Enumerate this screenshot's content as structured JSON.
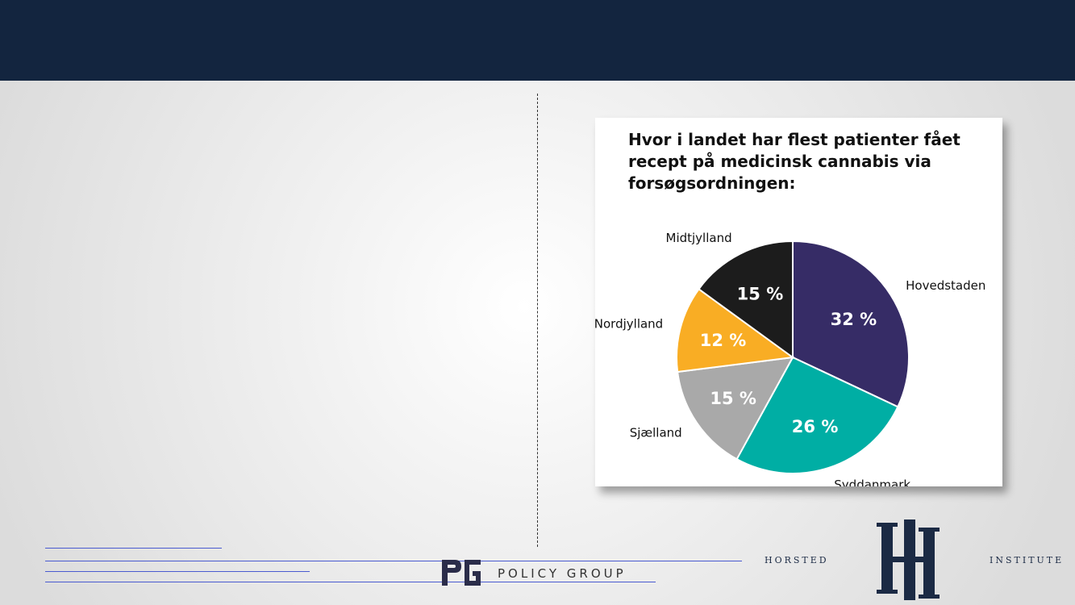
{
  "chart_data": {
    "type": "pie",
    "title": "Hvor i landet har flest patienter fået recept på medicinsk cannabis via forsøgsordningen:",
    "slices": [
      {
        "label": "Hovedstaden",
        "value": 32,
        "value_label": "32 %",
        "color": "#362c66"
      },
      {
        "label": "Syddanmark",
        "value": 26,
        "value_label": "26 %",
        "color": "#00aea4"
      },
      {
        "label": "Sjælland",
        "value": 15,
        "value_label": "15 %",
        "color": "#a9a9a9"
      },
      {
        "label": "Nordjylland",
        "value": 12,
        "value_label": "12 %",
        "color": "#f9ad24"
      },
      {
        "label": "Midtjylland",
        "value": 15,
        "value_label": "15 %",
        "color": "#1c1c1c"
      }
    ]
  },
  "footer": {
    "policy_group_text": "POLICY GROUP",
    "horsted_text": "HORSTED",
    "institute_text": "INSTITUTE"
  },
  "colors": {
    "header_band": "#13253f",
    "footer_line": "#4a5bd0"
  }
}
